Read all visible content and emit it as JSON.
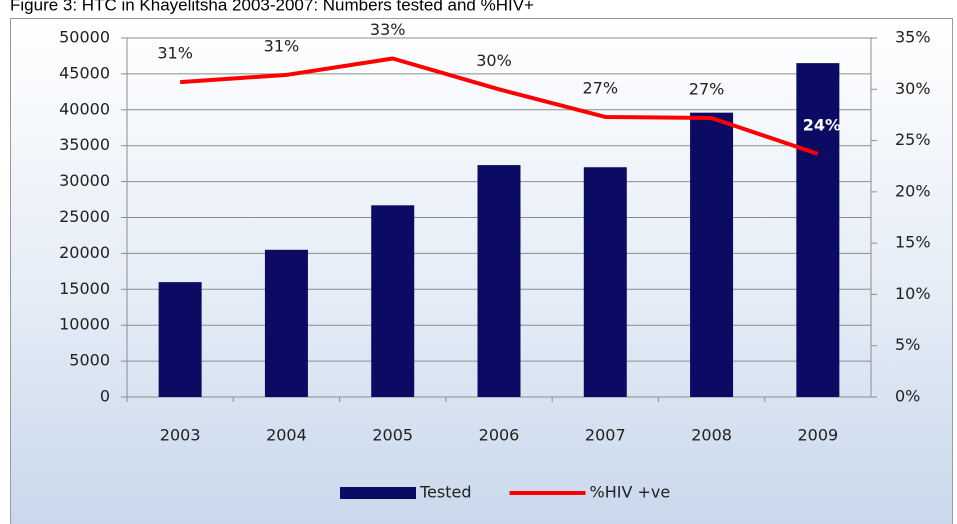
{
  "chart_data": {
    "type": "bar_line",
    "title": "Figure 3: HTC in Khayelitsha 2003-2007: Numbers tested and %HIV+",
    "categories": [
      "2003",
      "2004",
      "2005",
      "2006",
      "2007",
      "2008",
      "2009"
    ],
    "series": [
      {
        "name": "Tested",
        "type": "bar",
        "color": "#0b0b63",
        "values": [
          16000,
          20500,
          26700,
          32300,
          32000,
          39600,
          46500
        ]
      },
      {
        "name": "%HIV +ve",
        "type": "line",
        "axis": "y2",
        "color": "#ff0000",
        "values": [
          30.7,
          31.4,
          33,
          30,
          27.3,
          27.2,
          23.7
        ],
        "value_labels": [
          "31%",
          "31%",
          "33%",
          "30%",
          "27%",
          "27%",
          "24%"
        ]
      }
    ],
    "ylim": [
      0,
      50000
    ],
    "yticks": [
      0,
      5000,
      10000,
      15000,
      20000,
      25000,
      30000,
      35000,
      40000,
      45000,
      50000
    ],
    "y2lim": [
      0,
      35
    ],
    "y2ticks": [
      {
        "value": 0,
        "label": "0%"
      },
      {
        "value": 5,
        "label": "5%"
      },
      {
        "value": 10,
        "label": "10%"
      },
      {
        "value": 15,
        "label": "15%"
      },
      {
        "value": 20,
        "label": "20%"
      },
      {
        "value": 25,
        "label": "25%"
      },
      {
        "value": 30,
        "label": "30%"
      },
      {
        "value": 35,
        "label": "35%"
      }
    ],
    "grid": true,
    "legend": "bottom"
  }
}
